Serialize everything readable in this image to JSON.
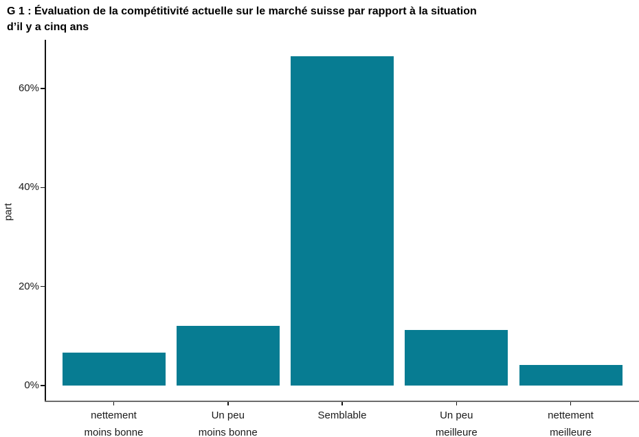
{
  "title": {
    "line1": "G 1 : Évaluation de la compétitivité actuelle sur le marché suisse par rapport à la situation",
    "line2": "d’il y a cinq ans"
  },
  "chart_data": {
    "type": "bar",
    "title": "G 1 : Évaluation de la compétitivité actuelle sur le marché suisse par rapport à la situation d’il y a cinq ans",
    "categories": [
      "nettement\nmoins bonne",
      "Un peu\nmoins bonne",
      "Semblable",
      "Un peu\nmeilleure",
      "nettement\nmeilleure"
    ],
    "values": [
      6.6,
      12.1,
      66.5,
      11.2,
      4.2
    ],
    "unit": "%",
    "xlabel": "",
    "ylabel": "part",
    "ylim": [
      0,
      70
    ],
    "yticks": [
      0,
      20,
      40,
      60
    ],
    "ytick_labels": [
      "0%",
      "20%",
      "40%",
      "60%"
    ],
    "grid": false,
    "legend": "none",
    "colors": {
      "bar": "#077c92",
      "x_axis_line": "#6b6b6b",
      "y_axis_line": "#111111",
      "text": "#000000"
    }
  }
}
